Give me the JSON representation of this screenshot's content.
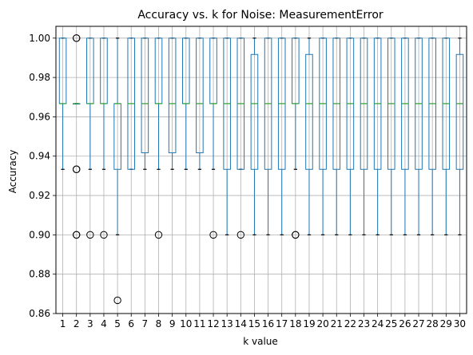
{
  "chart_data": {
    "type": "box",
    "title": "Accuracy vs. k for Noise: MeasurementError",
    "xlabel": "k value",
    "ylabel": "Accuracy",
    "ylim": [
      0.86,
      1.006
    ],
    "yticks": [
      "0.86",
      "0.88",
      "0.90",
      "0.92",
      "0.94",
      "0.96",
      "0.98",
      "1.00"
    ],
    "grid": true,
    "colors": {
      "box": "#1f77b4",
      "median": "#2ca02c",
      "grid": "#b0b0b0",
      "whisker": "#1f77b4"
    },
    "boxes": [
      {
        "k": "1",
        "q1": 0.9667,
        "median": 0.9667,
        "q3": 1.0,
        "low": 0.9333,
        "high": 1.0,
        "outliers": []
      },
      {
        "k": "2",
        "q1": 0.9667,
        "median": 0.9667,
        "q3": 0.9667,
        "low": 0.9667,
        "high": 0.9667,
        "outliers": [
          1.0,
          1.0,
          0.9333,
          0.9333,
          0.9,
          0.9
        ]
      },
      {
        "k": "3",
        "q1": 0.9667,
        "median": 0.9667,
        "q3": 1.0,
        "low": 0.9333,
        "high": 1.0,
        "outliers": [
          0.9
        ]
      },
      {
        "k": "4",
        "q1": 0.9667,
        "median": 0.9667,
        "q3": 1.0,
        "low": 0.9333,
        "high": 1.0,
        "outliers": [
          0.9
        ]
      },
      {
        "k": "5",
        "q1": 0.9333,
        "median": 0.9667,
        "q3": 0.9667,
        "low": 0.9,
        "high": 1.0,
        "outliers": [
          0.8667
        ]
      },
      {
        "k": "6",
        "q1": 0.9333,
        "median": 0.9667,
        "q3": 1.0,
        "low": 0.9333,
        "high": 1.0,
        "outliers": []
      },
      {
        "k": "7",
        "q1": 0.9417,
        "median": 0.9667,
        "q3": 1.0,
        "low": 0.9333,
        "high": 1.0,
        "outliers": []
      },
      {
        "k": "8",
        "q1": 0.9667,
        "median": 0.9667,
        "q3": 1.0,
        "low": 0.9333,
        "high": 1.0,
        "outliers": [
          0.9
        ]
      },
      {
        "k": "9",
        "q1": 0.9417,
        "median": 0.9667,
        "q3": 1.0,
        "low": 0.9333,
        "high": 1.0,
        "outliers": []
      },
      {
        "k": "10",
        "q1": 0.9667,
        "median": 0.9667,
        "q3": 1.0,
        "low": 0.9333,
        "high": 1.0,
        "outliers": []
      },
      {
        "k": "11",
        "q1": 0.9417,
        "median": 0.9667,
        "q3": 1.0,
        "low": 0.9333,
        "high": 1.0,
        "outliers": []
      },
      {
        "k": "12",
        "q1": 0.9667,
        "median": 0.9667,
        "q3": 1.0,
        "low": 0.9333,
        "high": 1.0,
        "outliers": [
          0.9
        ]
      },
      {
        "k": "13",
        "q1": 0.9333,
        "median": 0.9667,
        "q3": 1.0,
        "low": 0.9,
        "high": 1.0,
        "outliers": []
      },
      {
        "k": "14",
        "q1": 0.9333,
        "median": 0.9667,
        "q3": 1.0,
        "low": 0.9333,
        "high": 1.0,
        "outliers": [
          0.9
        ]
      },
      {
        "k": "15",
        "q1": 0.9333,
        "median": 0.9667,
        "q3": 0.9917,
        "low": 0.9,
        "high": 1.0,
        "outliers": []
      },
      {
        "k": "16",
        "q1": 0.9333,
        "median": 0.9667,
        "q3": 1.0,
        "low": 0.9,
        "high": 1.0,
        "outliers": []
      },
      {
        "k": "17",
        "q1": 0.9333,
        "median": 0.9667,
        "q3": 1.0,
        "low": 0.9,
        "high": 1.0,
        "outliers": []
      },
      {
        "k": "18",
        "q1": 0.9667,
        "median": 0.9667,
        "q3": 1.0,
        "low": 0.9333,
        "high": 1.0,
        "outliers": [
          0.9,
          0.9
        ]
      },
      {
        "k": "19",
        "q1": 0.9333,
        "median": 0.9667,
        "q3": 0.9917,
        "low": 0.9,
        "high": 1.0,
        "outliers": []
      },
      {
        "k": "20",
        "q1": 0.9333,
        "median": 0.9667,
        "q3": 1.0,
        "low": 0.9,
        "high": 1.0,
        "outliers": []
      },
      {
        "k": "21",
        "q1": 0.9333,
        "median": 0.9667,
        "q3": 1.0,
        "low": 0.9,
        "high": 1.0,
        "outliers": []
      },
      {
        "k": "22",
        "q1": 0.9333,
        "median": 0.9667,
        "q3": 1.0,
        "low": 0.9,
        "high": 1.0,
        "outliers": []
      },
      {
        "k": "23",
        "q1": 0.9333,
        "median": 0.9667,
        "q3": 1.0,
        "low": 0.9,
        "high": 1.0,
        "outliers": []
      },
      {
        "k": "24",
        "q1": 0.9333,
        "median": 0.9667,
        "q3": 1.0,
        "low": 0.9,
        "high": 1.0,
        "outliers": []
      },
      {
        "k": "25",
        "q1": 0.9333,
        "median": 0.9667,
        "q3": 1.0,
        "low": 0.9,
        "high": 1.0,
        "outliers": []
      },
      {
        "k": "26",
        "q1": 0.9333,
        "median": 0.9667,
        "q3": 1.0,
        "low": 0.9,
        "high": 1.0,
        "outliers": []
      },
      {
        "k": "27",
        "q1": 0.9333,
        "median": 0.9667,
        "q3": 1.0,
        "low": 0.9,
        "high": 1.0,
        "outliers": []
      },
      {
        "k": "28",
        "q1": 0.9333,
        "median": 0.9667,
        "q3": 1.0,
        "low": 0.9,
        "high": 1.0,
        "outliers": []
      },
      {
        "k": "29",
        "q1": 0.9333,
        "median": 0.9667,
        "q3": 1.0,
        "low": 0.9,
        "high": 1.0,
        "outliers": []
      },
      {
        "k": "30",
        "q1": 0.9333,
        "median": 0.9667,
        "q3": 0.9917,
        "low": 0.9,
        "high": 1.0,
        "outliers": []
      }
    ]
  }
}
